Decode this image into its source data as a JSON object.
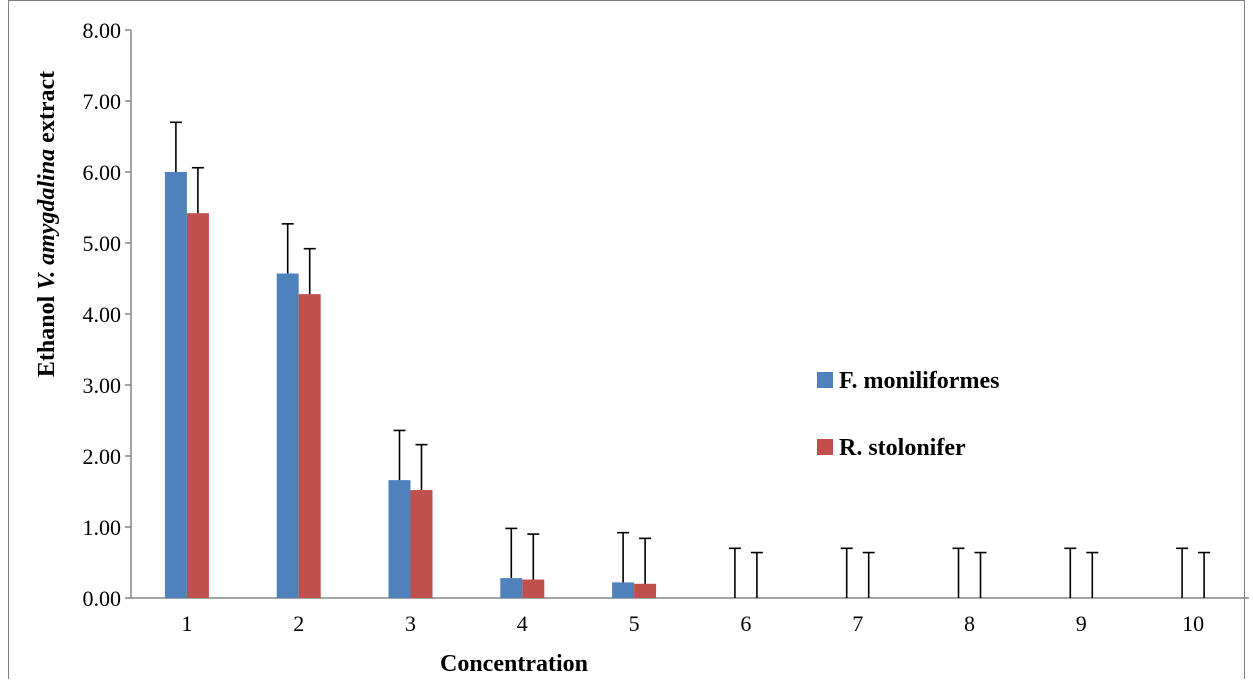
{
  "chart_data": {
    "type": "bar",
    "title": "",
    "xlabel": "Concentration",
    "ylabel": {
      "prefix": "Ethanol  ",
      "italic": "V. amygdalina",
      "suffix": " extract"
    },
    "categories": [
      "1",
      "2",
      "3",
      "4",
      "5",
      "6",
      "7",
      "8",
      "9",
      "10"
    ],
    "ylim": [
      0,
      8
    ],
    "yticks": [
      "0.00",
      "1.00",
      "2.00",
      "3.00",
      "4.00",
      "5.00",
      "6.00",
      "7.00",
      "8.00"
    ],
    "grid": false,
    "legend_position": "right",
    "series": [
      {
        "name": "F. moniliformes",
        "color": "#4f81bd",
        "values": [
          6.0,
          4.57,
          1.66,
          0.28,
          0.22,
          0,
          0,
          0,
          0,
          0
        ],
        "error": [
          0.7,
          0.7,
          0.7,
          0.7,
          0.7,
          0.7,
          0.7,
          0.7,
          0.7,
          0.7
        ]
      },
      {
        "name": "R. stolonifer",
        "color": "#c0504d",
        "values": [
          5.42,
          4.28,
          1.52,
          0.26,
          0.2,
          0,
          0,
          0,
          0,
          0
        ],
        "error": [
          0.64,
          0.64,
          0.64,
          0.64,
          0.64,
          0.64,
          0.64,
          0.64,
          0.64,
          0.64
        ]
      }
    ]
  }
}
